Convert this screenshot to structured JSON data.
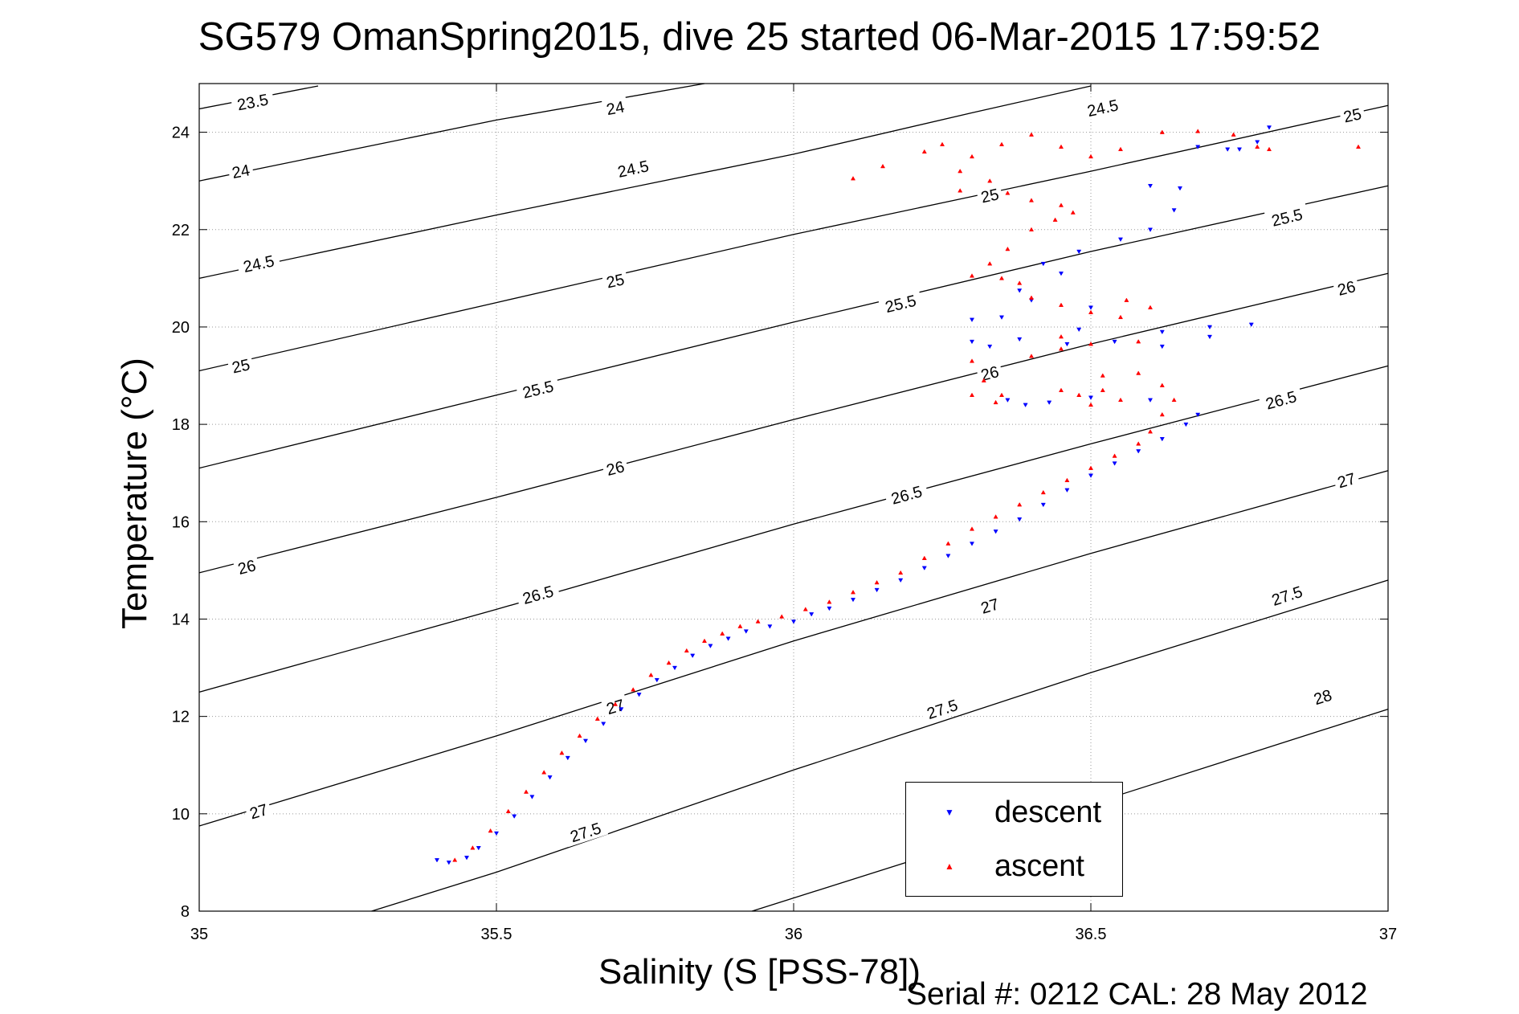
{
  "title": "SG579 OmanSpring2015, dive 25 started 06-Mar-2015 17:59:52",
  "footer": "Serial #: 0212  CAL: 28 May 2012",
  "colors": {
    "descent": "#0000ff",
    "ascent": "#ff0000",
    "contour": "#000000",
    "grid": "#999999"
  },
  "chart_data": {
    "type": "scatter",
    "xlabel": "Salinity (S [PSS-78])",
    "ylabel": "Temperature (°C)",
    "xlim": [
      35,
      37
    ],
    "ylim": [
      8,
      25
    ],
    "x_ticks": [
      35,
      35.5,
      36,
      36.5,
      37
    ],
    "x_tick_labels": [
      "35",
      "35.5",
      "36",
      "36.5",
      "37"
    ],
    "y_ticks": [
      8,
      10,
      12,
      14,
      16,
      18,
      20,
      22,
      24
    ],
    "y_tick_labels": [
      "8",
      "10",
      "12",
      "14",
      "16",
      "18",
      "20",
      "22",
      "24"
    ],
    "grid": true,
    "legend_position": "bottom-right",
    "density_contours": [
      {
        "label": "23.5",
        "points": [
          [
            35,
            24.48
          ],
          [
            35.2,
            24.95
          ]
        ]
      },
      {
        "label": "24",
        "points": [
          [
            35,
            23.0
          ],
          [
            35.5,
            24.25
          ],
          [
            35.85,
            25.0
          ]
        ]
      },
      {
        "label": "24.5",
        "points": [
          [
            35,
            21.0
          ],
          [
            35.5,
            22.3
          ],
          [
            36,
            23.55
          ],
          [
            36.3,
            24.4
          ],
          [
            36.5,
            24.95
          ]
        ]
      },
      {
        "label": "25",
        "points": [
          [
            35,
            19.1
          ],
          [
            35.5,
            20.5
          ],
          [
            36,
            21.9
          ],
          [
            36.5,
            23.2
          ],
          [
            37,
            24.55
          ]
        ]
      },
      {
        "label": "25.5",
        "points": [
          [
            35,
            17.1
          ],
          [
            35.5,
            18.6
          ],
          [
            36,
            20.1
          ],
          [
            36.5,
            21.55
          ],
          [
            37,
            22.9
          ]
        ]
      },
      {
        "label": "26",
        "points": [
          [
            35,
            14.95
          ],
          [
            35.5,
            16.5
          ],
          [
            36,
            18.1
          ],
          [
            36.5,
            19.65
          ],
          [
            37,
            21.1
          ]
        ]
      },
      {
        "label": "26.5",
        "points": [
          [
            35,
            12.5
          ],
          [
            35.5,
            14.2
          ],
          [
            36,
            15.95
          ],
          [
            36.5,
            17.6
          ],
          [
            37,
            19.2
          ]
        ]
      },
      {
        "label": "27",
        "points": [
          [
            35,
            9.75
          ],
          [
            35.5,
            11.6
          ],
          [
            36,
            13.55
          ],
          [
            36.5,
            15.35
          ],
          [
            37,
            17.05
          ]
        ]
      },
      {
        "label": "27.5",
        "points": [
          [
            35.29,
            8.0
          ],
          [
            35.5,
            8.8
          ],
          [
            36,
            10.9
          ],
          [
            36.5,
            12.9
          ],
          [
            37,
            14.8
          ]
        ]
      },
      {
        "label": "28",
        "points": [
          [
            35.93,
            8.0
          ],
          [
            36.5,
            10.2
          ],
          [
            37,
            12.15
          ]
        ]
      }
    ],
    "contour_labels": [
      {
        "text": "23.5",
        "at": [
          35.09,
          24.62
        ]
      },
      {
        "text": "24",
        "at": [
          35.07,
          23.2
        ]
      },
      {
        "text": "24",
        "at": [
          35.7,
          24.5
        ]
      },
      {
        "text": "24.5",
        "at": [
          35.1,
          21.3
        ]
      },
      {
        "text": "24.5",
        "at": [
          35.73,
          23.25
        ]
      },
      {
        "text": "24.5",
        "at": [
          36.52,
          24.5
        ]
      },
      {
        "text": "25",
        "at": [
          35.07,
          19.2
        ]
      },
      {
        "text": "25",
        "at": [
          35.7,
          20.95
        ]
      },
      {
        "text": "25",
        "at": [
          36.33,
          22.7
        ]
      },
      {
        "text": "25",
        "at": [
          36.94,
          24.35
        ]
      },
      {
        "text": "25.5",
        "at": [
          35.57,
          18.72
        ]
      },
      {
        "text": "25.5",
        "at": [
          36.18,
          20.48
        ]
      },
      {
        "text": "25.5",
        "at": [
          36.83,
          22.25
        ]
      },
      {
        "text": "26",
        "at": [
          35.08,
          15.07
        ]
      },
      {
        "text": "26",
        "at": [
          35.7,
          17.1
        ]
      },
      {
        "text": "26",
        "at": [
          36.33,
          19.05
        ]
      },
      {
        "text": "26",
        "at": [
          36.93,
          20.8
        ]
      },
      {
        "text": "26.5",
        "at": [
          35.57,
          14.5
        ]
      },
      {
        "text": "26.5",
        "at": [
          36.19,
          16.55
        ]
      },
      {
        "text": "26.5",
        "at": [
          36.82,
          18.5
        ]
      },
      {
        "text": "27",
        "at": [
          35.1,
          10.05
        ]
      },
      {
        "text": "27",
        "at": [
          35.7,
          12.2
        ]
      },
      {
        "text": "27",
        "at": [
          36.33,
          14.27
        ]
      },
      {
        "text": "27",
        "at": [
          36.93,
          16.85
        ]
      },
      {
        "text": "27.5",
        "at": [
          35.65,
          9.62
        ]
      },
      {
        "text": "27.5",
        "at": [
          36.25,
          12.15
        ]
      },
      {
        "text": "27.5",
        "at": [
          36.83,
          14.48
        ]
      },
      {
        "text": "28",
        "at": [
          36.89,
          12.4
        ]
      }
    ],
    "series": [
      {
        "name": "descent",
        "marker": "triangle-down",
        "points": [
          [
            35.4,
            9.05
          ],
          [
            35.42,
            9.0
          ],
          [
            35.45,
            9.1
          ],
          [
            35.47,
            9.3
          ],
          [
            35.5,
            9.6
          ],
          [
            35.53,
            9.95
          ],
          [
            35.56,
            10.35
          ],
          [
            35.59,
            10.75
          ],
          [
            35.62,
            11.15
          ],
          [
            35.65,
            11.5
          ],
          [
            35.68,
            11.85
          ],
          [
            35.71,
            12.15
          ],
          [
            35.74,
            12.45
          ],
          [
            35.77,
            12.75
          ],
          [
            35.8,
            13.0
          ],
          [
            35.83,
            13.25
          ],
          [
            35.86,
            13.45
          ],
          [
            35.89,
            13.6
          ],
          [
            35.92,
            13.75
          ],
          [
            35.96,
            13.85
          ],
          [
            36.0,
            13.95
          ],
          [
            36.03,
            14.1
          ],
          [
            36.06,
            14.22
          ],
          [
            36.1,
            14.4
          ],
          [
            36.14,
            14.6
          ],
          [
            36.18,
            14.8
          ],
          [
            36.22,
            15.05
          ],
          [
            36.26,
            15.3
          ],
          [
            36.3,
            15.55
          ],
          [
            36.34,
            15.8
          ],
          [
            36.38,
            16.05
          ],
          [
            36.42,
            16.35
          ],
          [
            36.46,
            16.65
          ],
          [
            36.5,
            16.95
          ],
          [
            36.54,
            17.2
          ],
          [
            36.58,
            17.45
          ],
          [
            36.62,
            17.7
          ],
          [
            36.66,
            18.0
          ],
          [
            36.68,
            18.2
          ],
          [
            36.6,
            18.5
          ],
          [
            36.5,
            18.55
          ],
          [
            36.43,
            18.45
          ],
          [
            36.39,
            18.4
          ],
          [
            36.36,
            18.5
          ],
          [
            36.33,
            19.6
          ],
          [
            36.3,
            19.7
          ],
          [
            36.38,
            19.75
          ],
          [
            36.46,
            19.65
          ],
          [
            36.54,
            19.7
          ],
          [
            36.62,
            19.9
          ],
          [
            36.7,
            20.0
          ],
          [
            36.77,
            20.05
          ],
          [
            36.7,
            19.8
          ],
          [
            36.62,
            19.6
          ],
          [
            36.48,
            19.95
          ],
          [
            36.5,
            20.4
          ],
          [
            36.4,
            20.55
          ],
          [
            36.35,
            20.2
          ],
          [
            36.3,
            20.15
          ],
          [
            36.38,
            20.75
          ],
          [
            36.45,
            21.1
          ],
          [
            36.42,
            21.3
          ],
          [
            36.48,
            21.55
          ],
          [
            36.55,
            21.8
          ],
          [
            36.6,
            22.0
          ],
          [
            36.64,
            22.4
          ],
          [
            36.6,
            22.9
          ],
          [
            36.65,
            22.85
          ],
          [
            36.75,
            23.65
          ],
          [
            36.78,
            23.8
          ],
          [
            36.8,
            24.1
          ],
          [
            36.73,
            23.65
          ],
          [
            36.68,
            23.7
          ]
        ]
      },
      {
        "name": "ascent",
        "marker": "triangle-up",
        "points": [
          [
            35.43,
            9.05
          ],
          [
            35.46,
            9.3
          ],
          [
            35.49,
            9.65
          ],
          [
            35.52,
            10.05
          ],
          [
            35.55,
            10.45
          ],
          [
            35.58,
            10.85
          ],
          [
            35.61,
            11.25
          ],
          [
            35.64,
            11.6
          ],
          [
            35.67,
            11.95
          ],
          [
            35.7,
            12.25
          ],
          [
            35.73,
            12.55
          ],
          [
            35.76,
            12.85
          ],
          [
            35.79,
            13.1
          ],
          [
            35.82,
            13.35
          ],
          [
            35.85,
            13.55
          ],
          [
            35.88,
            13.7
          ],
          [
            35.91,
            13.85
          ],
          [
            35.94,
            13.95
          ],
          [
            35.98,
            14.05
          ],
          [
            36.02,
            14.2
          ],
          [
            36.06,
            14.35
          ],
          [
            36.1,
            14.55
          ],
          [
            36.14,
            14.75
          ],
          [
            36.18,
            14.95
          ],
          [
            36.22,
            15.25
          ],
          [
            36.26,
            15.55
          ],
          [
            36.3,
            15.85
          ],
          [
            36.34,
            16.1
          ],
          [
            36.38,
            16.35
          ],
          [
            36.42,
            16.6
          ],
          [
            36.46,
            16.85
          ],
          [
            36.5,
            17.1
          ],
          [
            36.54,
            17.35
          ],
          [
            36.58,
            17.6
          ],
          [
            36.6,
            17.85
          ],
          [
            36.62,
            18.2
          ],
          [
            36.64,
            18.5
          ],
          [
            36.62,
            18.8
          ],
          [
            36.58,
            19.05
          ],
          [
            36.52,
            19.0
          ],
          [
            36.48,
            18.6
          ],
          [
            36.45,
            18.7
          ],
          [
            36.55,
            18.5
          ],
          [
            36.5,
            18.4
          ],
          [
            36.35,
            18.6
          ],
          [
            36.32,
            18.9
          ],
          [
            36.3,
            19.3
          ],
          [
            36.4,
            19.4
          ],
          [
            36.45,
            19.55
          ],
          [
            36.5,
            19.65
          ],
          [
            36.58,
            19.7
          ],
          [
            36.55,
            20.2
          ],
          [
            36.6,
            20.4
          ],
          [
            36.56,
            20.55
          ],
          [
            36.5,
            20.3
          ],
          [
            36.45,
            20.45
          ],
          [
            36.4,
            20.6
          ],
          [
            36.38,
            20.9
          ],
          [
            36.35,
            21.0
          ],
          [
            36.3,
            21.05
          ],
          [
            36.33,
            21.3
          ],
          [
            36.36,
            21.6
          ],
          [
            36.4,
            22.0
          ],
          [
            36.44,
            22.2
          ],
          [
            36.47,
            22.35
          ],
          [
            36.45,
            22.5
          ],
          [
            36.4,
            22.6
          ],
          [
            36.36,
            22.75
          ],
          [
            36.33,
            23.0
          ],
          [
            36.28,
            23.2
          ],
          [
            36.3,
            23.5
          ],
          [
            36.35,
            23.75
          ],
          [
            36.4,
            23.95
          ],
          [
            36.45,
            23.7
          ],
          [
            36.5,
            23.5
          ],
          [
            36.55,
            23.65
          ],
          [
            36.62,
            24.0
          ],
          [
            36.68,
            24.02
          ],
          [
            36.74,
            23.95
          ],
          [
            36.78,
            23.7
          ],
          [
            36.8,
            23.65
          ],
          [
            36.95,
            23.7
          ],
          [
            36.25,
            23.75
          ],
          [
            36.22,
            23.6
          ],
          [
            36.15,
            23.3
          ],
          [
            36.1,
            23.05
          ],
          [
            36.28,
            22.8
          ],
          [
            36.45,
            19.8
          ],
          [
            36.3,
            18.6
          ],
          [
            36.34,
            18.45
          ],
          [
            36.52,
            18.7
          ]
        ]
      }
    ]
  }
}
